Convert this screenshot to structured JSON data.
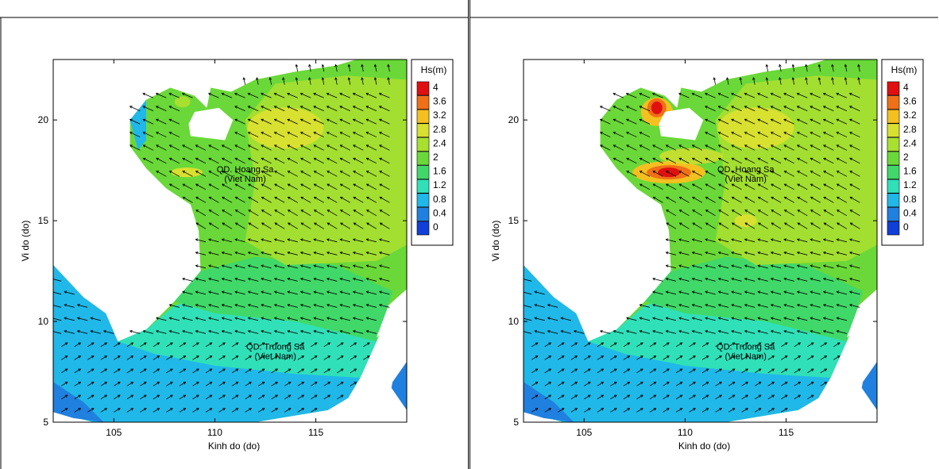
{
  "panels": [
    {
      "id": "left",
      "x_label": "Kinh do (do)",
      "y_label": "Vi do (do)",
      "legend_title": "Hs(m)",
      "labels": [
        {
          "line1": "QD. Hoang Sa",
          "line2": "(Viet Nam)",
          "lon": 111.5,
          "lat": 17.4
        },
        {
          "line1": "QD. Truong Sa",
          "line2": "(Viet Nam)",
          "lon": 113.0,
          "lat": 8.6
        }
      ]
    },
    {
      "id": "right",
      "x_label": "Kinh do (do)",
      "y_label": "Vi do (do)",
      "legend_title": "Hs(m)",
      "labels": [
        {
          "line1": "QD. Hoang Sa",
          "line2": "(Viet Nam)",
          "lon": 113.0,
          "lat": 17.4
        },
        {
          "line1": "QD. Truong Sa",
          "line2": "(Viet Nam)",
          "lon": 113.0,
          "lat": 8.6
        }
      ]
    }
  ],
  "x_ticks": [
    "105",
    "110",
    "115"
  ],
  "y_ticks": [
    "5",
    "10",
    "15",
    "20"
  ],
  "legend_levels": [
    "4",
    "3.6",
    "3.2",
    "2.8",
    "2.4",
    "2",
    "1.6",
    "1.2",
    "0.8",
    "0.4",
    "0"
  ],
  "legend_colors": [
    "#e01010",
    "#f07018",
    "#f4c020",
    "#d8e030",
    "#a8e030",
    "#6ad838",
    "#40d868",
    "#30e0b8",
    "#20b8e8",
    "#2080e0",
    "#1040d8"
  ],
  "x_range": [
    102,
    119.5
  ],
  "y_range": [
    5,
    23
  ]
}
